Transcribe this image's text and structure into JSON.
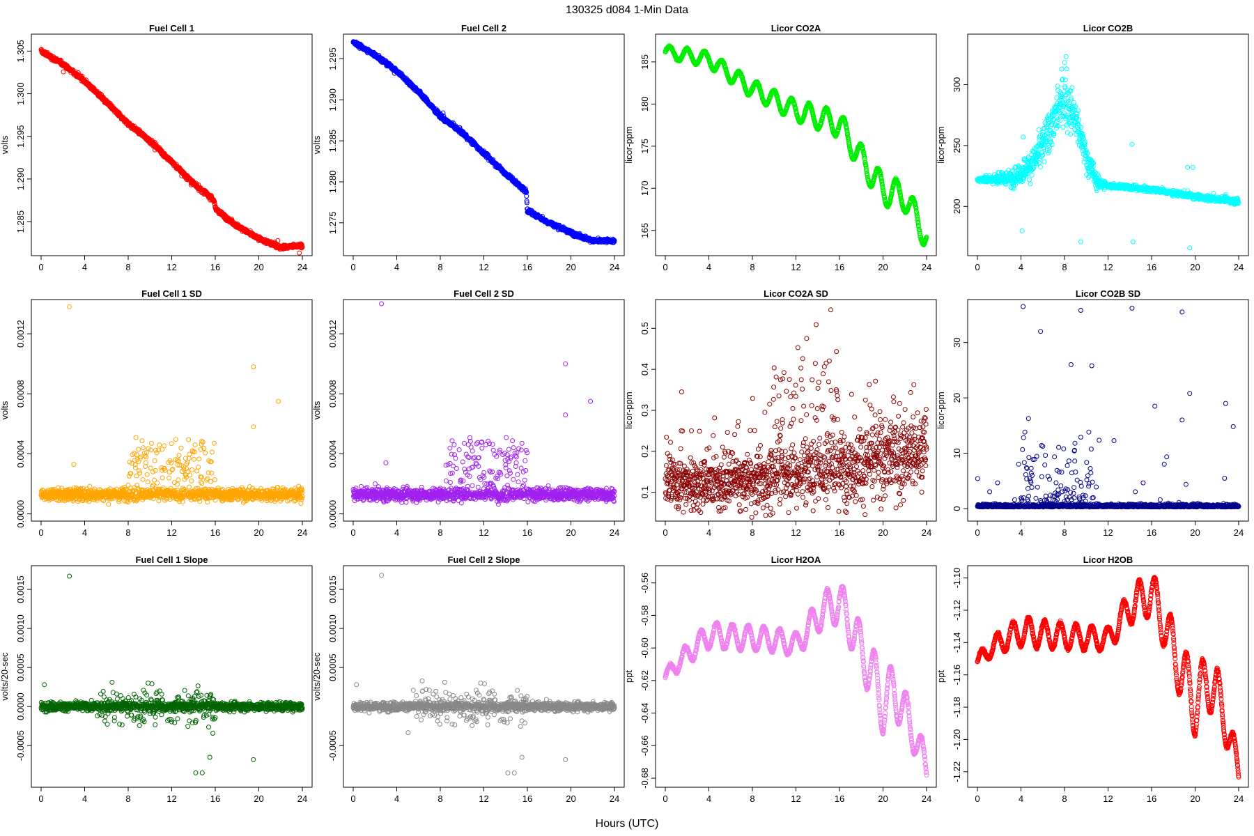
{
  "figure": {
    "title": "130325   d084   1-Min Data",
    "xlabel": "Hours (UTC)"
  },
  "chart_data": [
    {
      "id": "fc1",
      "type": "scatter",
      "title": "Fuel Cell 1",
      "ylabel": "volts",
      "color": "#ff0000",
      "xlim": [
        0,
        24
      ],
      "ylim": [
        1.2815,
        1.3065
      ],
      "xticks": [
        0,
        4,
        8,
        12,
        16,
        20,
        24
      ],
      "yticks": [
        1.285,
        1.29,
        1.295,
        1.3,
        1.305
      ],
      "ytick_labels": [
        "1.285",
        "1.290",
        "1.295",
        "1.300",
        "1.305"
      ],
      "pattern": "trend",
      "points": [
        [
          0,
          1.305
        ],
        [
          2,
          1.3035
        ],
        [
          4,
          1.3015
        ],
        [
          6,
          1.299
        ],
        [
          8,
          1.2965
        ],
        [
          10,
          1.2945
        ],
        [
          12,
          1.292
        ],
        [
          14,
          1.2895
        ],
        [
          15.9,
          1.2875
        ],
        [
          16.0,
          1.2865
        ],
        [
          18,
          1.2845
        ],
        [
          20,
          1.283
        ],
        [
          22,
          1.282
        ],
        [
          24,
          1.2822
        ]
      ],
      "noise": 0.00035
    },
    {
      "id": "fc2",
      "type": "scatter",
      "title": "Fuel Cell 2",
      "ylabel": "volts",
      "color": "#0000ff",
      "xlim": [
        0,
        24
      ],
      "ylim": [
        1.2715,
        1.2975
      ],
      "xticks": [
        0,
        4,
        8,
        12,
        16,
        20,
        24
      ],
      "yticks": [
        1.275,
        1.28,
        1.285,
        1.29,
        1.295
      ],
      "ytick_labels": [
        "1.275",
        "1.280",
        "1.285",
        "1.290",
        "1.295"
      ],
      "pattern": "trend",
      "points": [
        [
          0,
          1.297
        ],
        [
          2,
          1.2955
        ],
        [
          4,
          1.2935
        ],
        [
          6,
          1.291
        ],
        [
          8,
          1.288
        ],
        [
          10,
          1.286
        ],
        [
          12,
          1.2835
        ],
        [
          14,
          1.281
        ],
        [
          15.9,
          1.2788
        ],
        [
          16.0,
          1.2765
        ],
        [
          18,
          1.275
        ],
        [
          20,
          1.2738
        ],
        [
          22,
          1.2728
        ],
        [
          24,
          1.2728
        ]
      ],
      "noise": 0.00035
    },
    {
      "id": "co2a",
      "type": "scatter",
      "title": "Licor CO2A",
      "ylabel": "licor-ppm",
      "color": "#00ee00",
      "xlim": [
        0,
        24
      ],
      "ylim": [
        162.5,
        187.8
      ],
      "xticks": [
        0,
        4,
        8,
        12,
        16,
        20,
        24
      ],
      "yticks": [
        165,
        170,
        175,
        180,
        185
      ],
      "ytick_labels": [
        "165",
        "170",
        "175",
        "180",
        "185"
      ],
      "pattern": "wave",
      "points": [
        [
          0,
          186.2
        ],
        [
          4,
          185.3
        ],
        [
          8,
          181.8
        ],
        [
          12,
          179.2
        ],
        [
          16,
          177.6
        ],
        [
          18,
          173.5
        ],
        [
          20,
          169.8
        ],
        [
          22,
          169.0
        ],
        [
          24,
          164.2
        ]
      ],
      "amp": [
        [
          0,
          0.7
        ],
        [
          12,
          1.2
        ],
        [
          20,
          1.8
        ],
        [
          24,
          1.6
        ]
      ],
      "period": 1.6,
      "noise": 0.1
    },
    {
      "id": "co2b",
      "type": "scatter",
      "title": "Licor CO2B",
      "ylabel": "licor-ppm",
      "color": "#00ffff",
      "xlim": [
        0,
        24
      ],
      "ylim": [
        163,
        338
      ],
      "xticks": [
        0,
        4,
        8,
        12,
        16,
        20,
        24
      ],
      "yticks": [
        200,
        250,
        300
      ],
      "ytick_labels": [
        "200",
        "250",
        "300"
      ],
      "pattern": "peak",
      "points": [
        [
          0,
          222
        ],
        [
          3,
          223
        ],
        [
          4,
          228
        ],
        [
          5,
          235
        ],
        [
          6,
          250
        ],
        [
          7,
          270
        ],
        [
          8,
          290
        ],
        [
          9,
          272
        ],
        [
          10,
          240
        ],
        [
          11,
          220
        ],
        [
          12,
          217
        ],
        [
          16,
          214
        ],
        [
          20,
          208
        ],
        [
          24,
          204
        ]
      ],
      "noise": 3,
      "spread": [
        [
          0,
          1
        ],
        [
          4.5,
          8
        ],
        [
          8,
          18
        ],
        [
          11,
          6
        ],
        [
          12,
          1.5
        ],
        [
          24,
          2
        ]
      ],
      "outlier_values": [
        180,
        171,
        257,
        251,
        166
      ]
    },
    {
      "id": "fc1sd",
      "type": "scatter",
      "title": "Fuel Cell 1 SD",
      "ylabel": "volts",
      "color": "#ffa500",
      "xlim": [
        0,
        24
      ],
      "ylim": [
        -2e-05,
        0.0014
      ],
      "xticks": [
        0,
        4,
        8,
        12,
        16,
        20,
        24
      ],
      "yticks": [
        0,
        0.0004,
        0.0008,
        0.0012
      ],
      "ytick_labels": [
        "0.0000",
        "0.0004",
        "0.0008",
        "0.0012"
      ],
      "pattern": "band",
      "base": 0.00013,
      "noise": 3.5e-05,
      "burst": [
        [
          8,
          16,
          0.00018
        ]
      ],
      "outliers": [
        [
          2.6,
          0.00138
        ],
        [
          19.5,
          0.00098
        ],
        [
          19.5,
          0.00058
        ],
        [
          21.8,
          0.00075
        ],
        [
          3,
          0.00033
        ]
      ]
    },
    {
      "id": "fc2sd",
      "type": "scatter",
      "title": "Fuel Cell 2 SD",
      "ylabel": "volts",
      "color": "#a020f0",
      "xlim": [
        0,
        24
      ],
      "ylim": [
        -2e-05,
        0.0014
      ],
      "xticks": [
        0,
        4,
        8,
        12,
        16,
        20,
        24
      ],
      "yticks": [
        0,
        0.0004,
        0.0008,
        0.0012
      ],
      "ytick_labels": [
        "0.0000",
        "0.0004",
        "0.0008",
        "0.0012"
      ],
      "pattern": "band",
      "base": 0.00013,
      "noise": 3.5e-05,
      "burst": [
        [
          8.5,
          16,
          0.00018
        ]
      ],
      "outliers": [
        [
          2.6,
          0.0014
        ],
        [
          19.5,
          0.001
        ],
        [
          19.5,
          0.00066
        ],
        [
          21.8,
          0.00075
        ],
        [
          3,
          0.00034
        ]
      ]
    },
    {
      "id": "co2asd",
      "type": "scatter",
      "title": "Licor CO2A SD",
      "ylabel": "licor-ppm",
      "color": "#8b0000",
      "xlim": [
        0,
        24
      ],
      "ylim": [
        0.04,
        0.56
      ],
      "xticks": [
        0,
        4,
        8,
        12,
        16,
        20,
        24
      ],
      "yticks": [
        0.1,
        0.2,
        0.3,
        0.4,
        0.5
      ],
      "ytick_labels": [
        "0.1",
        "0.2",
        "0.3",
        "0.4",
        "0.5"
      ],
      "pattern": "band",
      "base": 0.125,
      "trend_end": 0.2,
      "noise": 0.055,
      "burst": [
        [
          9.5,
          16,
          0.14
        ]
      ],
      "outliers": [
        [
          15.2,
          0.545
        ],
        [
          1.5,
          0.345
        ]
      ]
    },
    {
      "id": "co2bsd",
      "type": "scatter",
      "title": "Licor CO2B SD",
      "ylabel": "licor-ppm",
      "color": "#00008b",
      "xlim": [
        0,
        24
      ],
      "ylim": [
        -1.5,
        37
      ],
      "xticks": [
        0,
        4,
        8,
        12,
        16,
        20,
        24
      ],
      "yticks": [
        0,
        10,
        20,
        30
      ],
      "ytick_labels": [
        "0",
        "10",
        "20",
        "30"
      ],
      "pattern": "spiky",
      "base": 0.3,
      "noise": 0.4,
      "burst": [
        [
          4,
          11,
          9
        ]
      ],
      "outliers": [
        [
          4.2,
          36.5
        ],
        [
          14.2,
          36.2
        ],
        [
          9.5,
          35.8
        ],
        [
          18.8,
          35.5
        ],
        [
          5.8,
          32
        ],
        [
          10.5,
          25.8
        ],
        [
          8.6,
          26
        ],
        [
          16.3,
          18.5
        ],
        [
          19.5,
          20.8
        ],
        [
          18.8,
          16
        ],
        [
          22.8,
          19
        ],
        [
          23.5,
          14.8
        ]
      ]
    },
    {
      "id": "fc1slope",
      "type": "scatter",
      "title": "Fuel Cell 1 Slope",
      "ylabel": "volts/20-sec",
      "color": "#006400",
      "xlim": [
        0,
        24
      ],
      "ylim": [
        -0.00098,
        0.00175
      ],
      "xticks": [
        0,
        4,
        8,
        12,
        16,
        20,
        24
      ],
      "yticks": [
        -0.0005,
        0,
        0.0005,
        0.001,
        0.0015
      ],
      "ytick_labels": [
        "-0.0005",
        "0.0000",
        "0.0005",
        "0.0010",
        "0.0015"
      ],
      "pattern": "slope",
      "base": 0.0,
      "noise": 4.5e-05,
      "burst": [
        [
          5,
          16,
          0.00022
        ]
      ],
      "outliers": [
        [
          2.6,
          0.00167
        ],
        [
          14.2,
          -0.00085
        ],
        [
          14.8,
          -0.00085
        ],
        [
          15.5,
          -0.00065
        ],
        [
          19.5,
          -0.00068
        ],
        [
          0.3,
          0.00028
        ]
      ]
    },
    {
      "id": "fc2slope",
      "type": "scatter",
      "title": "Fuel Cell 2 Slope",
      "ylabel": "volts/20-sec",
      "color": "#888888",
      "xlim": [
        0,
        24
      ],
      "ylim": [
        -0.00098,
        0.00175
      ],
      "xticks": [
        0,
        4,
        8,
        12,
        16,
        20,
        24
      ],
      "yticks": [
        -0.0005,
        0.0005,
        0.001,
        0.0015
      ],
      "ytick_labels": [
        "-0.0005",
        "0.0005",
        "0.0010",
        "0.0015"
      ],
      "pattern": "slope",
      "base": 0.0,
      "noise": 4.5e-05,
      "burst": [
        [
          5,
          16,
          0.00022
        ]
      ],
      "outliers": [
        [
          2.6,
          0.00168
        ],
        [
          14.2,
          -0.00085
        ],
        [
          14.8,
          -0.00085
        ],
        [
          15.5,
          -0.00065
        ],
        [
          19.5,
          -0.00068
        ],
        [
          0.3,
          0.00028
        ]
      ]
    },
    {
      "id": "h2oa",
      "type": "scatter",
      "title": "Licor H2OA",
      "ylabel": "ppt",
      "color": "#ee82ee",
      "xlim": [
        0,
        24
      ],
      "ylim": [
        -0.683,
        -0.552
      ],
      "xticks": [
        0,
        4,
        8,
        12,
        16,
        20,
        24
      ],
      "yticks": [
        -0.68,
        -0.66,
        -0.64,
        -0.62,
        -0.6,
        -0.58,
        -0.56
      ],
      "ytick_labels": [
        "-0.68",
        "-0.66",
        "-0.64",
        "-0.62",
        "-0.60",
        "-0.58",
        "-0.56"
      ],
      "pattern": "wave",
      "points": [
        [
          0,
          -0.618
        ],
        [
          1,
          -0.61
        ],
        [
          2,
          -0.604
        ],
        [
          4,
          -0.592
        ],
        [
          6,
          -0.593
        ],
        [
          8,
          -0.594
        ],
        [
          10,
          -0.595
        ],
        [
          12,
          -0.598
        ],
        [
          13,
          -0.59
        ],
        [
          14,
          -0.58
        ],
        [
          15,
          -0.575
        ],
        [
          16,
          -0.572
        ],
        [
          17,
          -0.585
        ],
        [
          18,
          -0.602
        ],
        [
          19,
          -0.615
        ],
        [
          20,
          -0.635
        ],
        [
          21,
          -0.625
        ],
        [
          22,
          -0.64
        ],
        [
          23,
          -0.655
        ],
        [
          24,
          -0.675
        ]
      ],
      "amp": [
        [
          0,
          0.004
        ],
        [
          4,
          0.008
        ],
        [
          12,
          0.007
        ],
        [
          16,
          0.013
        ],
        [
          20,
          0.018
        ],
        [
          24,
          0.01
        ]
      ],
      "period": 1.45,
      "noise": 0.0008
    },
    {
      "id": "h2ob",
      "type": "scatter",
      "title": "Licor H2OB",
      "ylabel": "ppt",
      "color": "#ff0000",
      "xlim": [
        0,
        24
      ],
      "ylim": [
        -1.227,
        -1.095
      ],
      "xticks": [
        0,
        4,
        8,
        12,
        16,
        20,
        24
      ],
      "yticks": [
        -1.22,
        -1.2,
        -1.18,
        -1.16,
        -1.14,
        -1.12,
        -1.1
      ],
      "ytick_labels": [
        "-1.22",
        "-1.20",
        "-1.18",
        "-1.16",
        "-1.14",
        "-1.12",
        "-1.10"
      ],
      "pattern": "wave",
      "points": [
        [
          0,
          -1.152
        ],
        [
          1,
          -1.145
        ],
        [
          2,
          -1.14
        ],
        [
          4,
          -1.133
        ],
        [
          6,
          -1.135
        ],
        [
          8,
          -1.136
        ],
        [
          10,
          -1.137
        ],
        [
          12,
          -1.138
        ],
        [
          13,
          -1.128
        ],
        [
          14,
          -1.118
        ],
        [
          15,
          -1.113
        ],
        [
          16,
          -1.11
        ],
        [
          17,
          -1.125
        ],
        [
          18,
          -1.145
        ],
        [
          19,
          -1.162
        ],
        [
          20,
          -1.178
        ],
        [
          21,
          -1.165
        ],
        [
          22,
          -1.17
        ],
        [
          23,
          -1.195
        ],
        [
          24,
          -1.22
        ]
      ],
      "amp": [
        [
          0,
          0.004
        ],
        [
          4,
          0.009
        ],
        [
          12,
          0.007
        ],
        [
          16,
          0.014
        ],
        [
          20,
          0.02
        ],
        [
          24,
          0.01
        ]
      ],
      "period": 1.45,
      "noise": 0.0008
    }
  ]
}
